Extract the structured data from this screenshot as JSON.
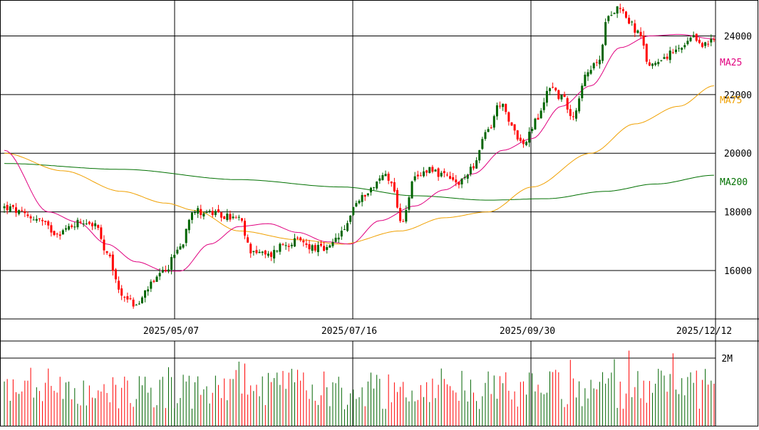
{
  "chart_data": [
    {
      "type": "candlestick",
      "title": "",
      "y_ticks": [
        16000,
        18000,
        20000,
        22000,
        24000
      ],
      "ylim": [
        14350,
        25200
      ],
      "x_tick_labels": [
        "2025/05/07",
        "2025/07/16",
        "2025/09/30",
        "2025/12/12"
      ],
      "grid": true,
      "colors": {
        "up": "#006400",
        "down": "#ff0000",
        "ma25": "#e0007f",
        "ma75": "#f0a000",
        "ma200": "#007000",
        "grid": "#000000"
      },
      "series_labels": {
        "ma25": "MA25",
        "ma75": "MA75",
        "ma200": "MA200"
      },
      "ohlc_anchors": [
        [
          0,
          18150
        ],
        [
          10,
          17800
        ],
        [
          18,
          17300
        ],
        [
          27,
          17700
        ],
        [
          31,
          17550
        ],
        [
          35,
          16500
        ],
        [
          40,
          15200
        ],
        [
          45,
          14800
        ],
        [
          50,
          15500
        ],
        [
          54,
          15900
        ],
        [
          60,
          16800
        ],
        [
          64,
          18050
        ],
        [
          68,
          18000
        ],
        [
          75,
          17850
        ],
        [
          80,
          17750
        ],
        [
          84,
          16700
        ],
        [
          90,
          16500
        ],
        [
          95,
          16900
        ],
        [
          100,
          17000
        ],
        [
          105,
          16800
        ],
        [
          110,
          16700
        ],
        [
          115,
          17250
        ],
        [
          120,
          18300
        ],
        [
          125,
          18800
        ],
        [
          130,
          19300
        ],
        [
          133,
          18800
        ],
        [
          135,
          17600
        ],
        [
          140,
          19100
        ],
        [
          145,
          19500
        ],
        [
          150,
          19200
        ],
        [
          155,
          18950
        ],
        [
          160,
          19600
        ],
        [
          165,
          20800
        ],
        [
          169,
          21700
        ],
        [
          173,
          20900
        ],
        [
          177,
          20300
        ],
        [
          182,
          21200
        ],
        [
          186,
          22300
        ],
        [
          190,
          21900
        ],
        [
          194,
          21300
        ],
        [
          198,
          22600
        ],
        [
          203,
          23200
        ],
        [
          206,
          24800
        ],
        [
          210,
          25000
        ],
        [
          213,
          24500
        ],
        [
          216,
          24100
        ],
        [
          220,
          23000
        ],
        [
          225,
          23300
        ],
        [
          230,
          23500
        ],
        [
          235,
          23900
        ],
        [
          239,
          23700
        ],
        [
          242,
          23850
        ]
      ],
      "ma25_anchors": [
        [
          0,
          20100
        ],
        [
          15,
          18000
        ],
        [
          25,
          17650
        ],
        [
          35,
          16900
        ],
        [
          45,
          16300
        ],
        [
          55,
          15980
        ],
        [
          60,
          15980
        ],
        [
          70,
          16900
        ],
        [
          80,
          17500
        ],
        [
          90,
          17600
        ],
        [
          100,
          17300
        ],
        [
          110,
          16980
        ],
        [
          118,
          16900
        ],
        [
          128,
          17700
        ],
        [
          140,
          18200
        ],
        [
          150,
          18750
        ],
        [
          160,
          19300
        ],
        [
          170,
          20100
        ],
        [
          180,
          20500
        ],
        [
          190,
          21600
        ],
        [
          200,
          22300
        ],
        [
          210,
          23600
        ],
        [
          220,
          24000
        ],
        [
          230,
          24050
        ],
        [
          242,
          23900
        ]
      ],
      "ma75_anchors": [
        [
          0,
          20000
        ],
        [
          20,
          19400
        ],
        [
          40,
          18700
        ],
        [
          55,
          18300
        ],
        [
          65,
          18050
        ],
        [
          80,
          17350
        ],
        [
          100,
          17050
        ],
        [
          115,
          16900
        ],
        [
          135,
          17350
        ],
        [
          150,
          17800
        ],
        [
          165,
          18000
        ],
        [
          180,
          18850
        ],
        [
          200,
          20000
        ],
        [
          215,
          21000
        ],
        [
          230,
          21600
        ],
        [
          242,
          22300
        ]
      ],
      "ma200_anchors": [
        [
          0,
          19650
        ],
        [
          40,
          19450
        ],
        [
          80,
          19100
        ],
        [
          115,
          18850
        ],
        [
          140,
          18550
        ],
        [
          165,
          18400
        ],
        [
          185,
          18450
        ],
        [
          205,
          18700
        ],
        [
          222,
          18950
        ],
        [
          242,
          19250
        ]
      ],
      "volume_ticks": [
        2000000
      ],
      "volume_ylim": [
        0,
        2500000
      ],
      "volume_tick_labels": [
        "2M"
      ]
    }
  ]
}
